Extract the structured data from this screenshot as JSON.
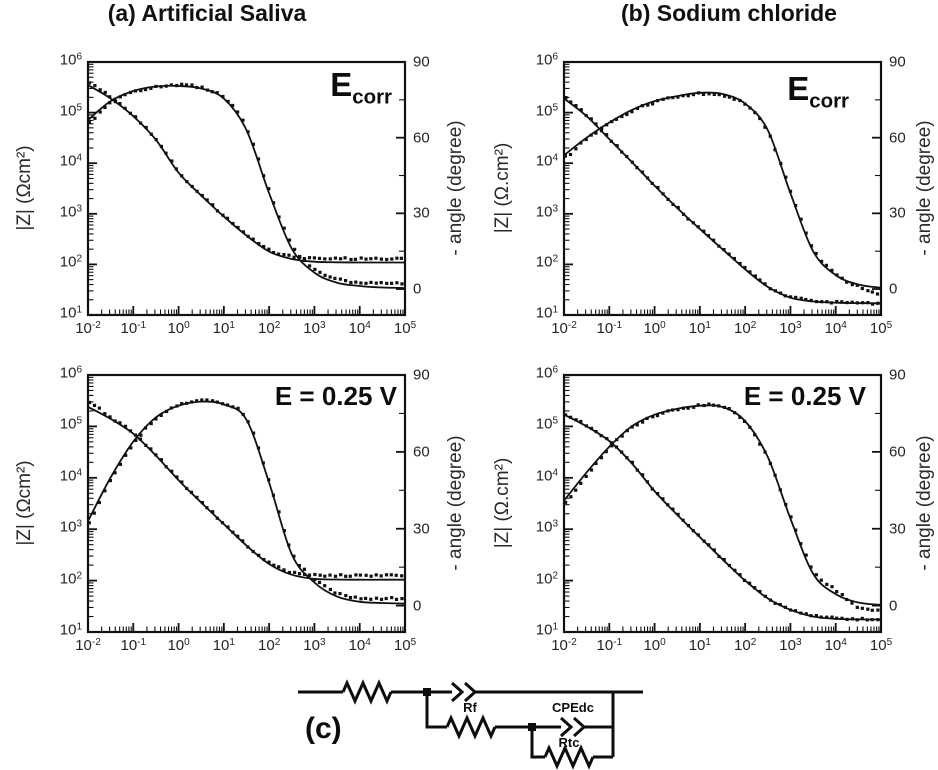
{
  "circuit": {
    "panel_label": "(c)",
    "rf": "Rf",
    "cpedc": "CPEdc",
    "rtc": "Rtc"
  },
  "chart_data": [
    {
      "panel": "a",
      "title": "(a) Artificial Saliva",
      "condition_label": {
        "main": "E",
        "sub": "corr"
      },
      "type": "line",
      "x": {
        "scale": "log",
        "range_log10": [
          -2,
          5
        ],
        "ticks": [
          "10^-2",
          "10^-1",
          "10^0",
          "10^1",
          "10^2",
          "10^3",
          "10^4",
          "10^5"
        ]
      },
      "y_left": {
        "label": "|Z| (Ωcm²)",
        "scale": "log",
        "range_log10": [
          1,
          6
        ],
        "ticks": [
          "10^6",
          "10^5",
          "10^4",
          "10^3",
          "10^2",
          "10^1"
        ]
      },
      "y_right": {
        "label": "- angle (degree)",
        "scale": "linear",
        "range": [
          -10.3,
          90
        ],
        "ticks": [
          "90",
          "60",
          "30",
          "0"
        ],
        "tick_values": [
          90,
          60,
          30,
          0
        ]
      },
      "x_log10": [
        -2,
        -1.5,
        -1,
        -0.5,
        0,
        0.5,
        1,
        1.5,
        2,
        2.5,
        3,
        3.5,
        4,
        4.5,
        5
      ],
      "series": [
        {
          "name": "impedance-fit",
          "axis": "left",
          "style": "line",
          "values": [
            350000,
            190000,
            85000,
            29000,
            6500,
            2300,
            880,
            370,
            180,
            128,
            113,
            110,
            109,
            109,
            109
          ]
        },
        {
          "name": "impedance-exp",
          "axis": "left",
          "style": "dots",
          "values": [
            380000,
            200000,
            88000,
            30000,
            6800,
            2400,
            920,
            390,
            195,
            142,
            130,
            129,
            130,
            130,
            132
          ]
        },
        {
          "name": "phase-fit",
          "axis": "right",
          "style": "line",
          "values": [
            67,
            74.5,
            78.5,
            80.3,
            80.5,
            79.5,
            75.5,
            63,
            38,
            16,
            6.5,
            2.5,
            1.2,
            0.6,
            0.4
          ]
        },
        {
          "name": "phase-exp",
          "axis": "right",
          "style": "dots",
          "values": [
            66,
            74,
            78,
            80,
            80.8,
            79.8,
            76,
            64,
            39,
            17.5,
            8,
            4,
            2.6,
            2.3,
            2.3
          ]
        }
      ]
    },
    {
      "panel": "b",
      "title": "(b) Sodium chloride",
      "condition_label": {
        "main": "E",
        "sub": "corr"
      },
      "type": "line",
      "x": {
        "scale": "log",
        "range_log10": [
          -2,
          5
        ],
        "ticks": [
          "10^-2",
          "10^-1",
          "10^0",
          "10^1",
          "10^2",
          "10^3",
          "10^4",
          "10^5"
        ]
      },
      "y_left": {
        "label": "|Z| (Ω.cm²)",
        "scale": "log",
        "range_log10": [
          1,
          6
        ],
        "ticks": [
          "10^6",
          "10^5",
          "10^4",
          "10^3",
          "10^2",
          "10^1"
        ]
      },
      "y_right": {
        "label": "- angle (degree)",
        "scale": "linear",
        "range": [
          -10.3,
          90
        ],
        "ticks": [
          "90",
          "60",
          "30",
          "0"
        ],
        "tick_values": [
          90,
          60,
          30,
          0
        ]
      },
      "x_log10": [
        -2,
        -1.5,
        -1,
        -0.5,
        0,
        0.5,
        1,
        1.5,
        2,
        2.5,
        3,
        3.5,
        4,
        4.5,
        5
      ],
      "series": [
        {
          "name": "impedance-fit",
          "axis": "left",
          "style": "line",
          "values": [
            190000,
            85000,
            30000,
            10500,
            3600,
            1300,
            500,
            200,
            80,
            36,
            22,
            18.5,
            17.5,
            17.2,
            17
          ]
        },
        {
          "name": "impedance-exp",
          "axis": "left",
          "style": "dots",
          "values": [
            200000,
            87000,
            31000,
            10700,
            3700,
            1330,
            510,
            205,
            82,
            37,
            23,
            19,
            18,
            17.5,
            17
          ]
        },
        {
          "name": "phase-fit",
          "axis": "right",
          "style": "line",
          "values": [
            53,
            60,
            66,
            71,
            74.5,
            76.5,
            77.8,
            77.3,
            73.5,
            63,
            38,
            15,
            5.5,
            1.8,
            0.5
          ]
        },
        {
          "name": "phase-exp",
          "axis": "right",
          "style": "dots",
          "values": [
            52,
            59.5,
            65.5,
            70.5,
            74,
            76.2,
            77.5,
            77,
            73,
            62.5,
            39,
            16,
            6,
            1,
            -2
          ]
        }
      ]
    },
    {
      "panel": "c",
      "title": "",
      "condition_label": {
        "main": "E = 0.25 V",
        "sub": ""
      },
      "type": "line",
      "x": {
        "scale": "log",
        "range_log10": [
          -2,
          5
        ],
        "ticks": [
          "10^-2",
          "10^-1",
          "10^0",
          "10^1",
          "10^2",
          "10^3",
          "10^4",
          "10^5"
        ]
      },
      "y_left": {
        "label": "|Z| (Ωcm²)",
        "scale": "log",
        "range_log10": [
          1,
          6
        ],
        "ticks": [
          "10^6",
          "10^5",
          "10^4",
          "10^3",
          "10^2",
          "10^1"
        ]
      },
      "y_right": {
        "label": "- angle (degree)",
        "scale": "linear",
        "range": [
          -10.3,
          90
        ],
        "ticks": [
          "90",
          "60",
          "30",
          "0"
        ],
        "tick_values": [
          90,
          60,
          30,
          0
        ]
      },
      "x_log10": [
        -2,
        -1.5,
        -1,
        -0.5,
        0,
        0.5,
        1,
        1.5,
        2,
        2.5,
        3,
        3.5,
        4,
        4.5,
        5
      ],
      "series": [
        {
          "name": "impedance-fit",
          "axis": "left",
          "style": "line",
          "values": [
            240000,
            140000,
            72000,
            27000,
            9000,
            3300,
            1250,
            480,
            210,
            130,
            108,
            105,
            104,
            104,
            104
          ]
        },
        {
          "name": "impedance-exp",
          "axis": "left",
          "style": "dots",
          "values": [
            300000,
            150000,
            74000,
            28000,
            9300,
            3400,
            1300,
            500,
            225,
            145,
            127,
            126,
            126,
            127,
            128
          ]
        },
        {
          "name": "phase-fit",
          "axis": "right",
          "style": "line",
          "values": [
            33,
            50,
            64,
            73.5,
            78,
            79.6,
            78.5,
            72.5,
            48,
            20,
            9,
            3.5,
            1.5,
            1,
            0.8
          ]
        },
        {
          "name": "phase-exp",
          "axis": "right",
          "style": "dots",
          "values": [
            32,
            49,
            63,
            73,
            78,
            80,
            79,
            73,
            49,
            21,
            10.5,
            5,
            3,
            2.8,
            2.8
          ]
        }
      ]
    },
    {
      "panel": "d",
      "title": "",
      "condition_label": {
        "main": "E = 0.25 V",
        "sub": ""
      },
      "type": "line",
      "x": {
        "scale": "log",
        "range_log10": [
          -2,
          5
        ],
        "ticks": [
          "10^-2",
          "10^-1",
          "10^0",
          "10^1",
          "10^2",
          "10^3",
          "10^4",
          "10^5"
        ]
      },
      "y_left": {
        "label": "|Z| (Ω.cm²)",
        "scale": "log",
        "range_log10": [
          1,
          6
        ],
        "ticks": [
          "10^6",
          "10^5",
          "10^4",
          "10^3",
          "10^2",
          "10^1"
        ]
      },
      "y_right": {
        "label": "- angle (degree)",
        "scale": "linear",
        "range": [
          -10.3,
          90
        ],
        "ticks": [
          "90",
          "60",
          "30",
          "0"
        ],
        "tick_values": [
          90,
          60,
          30,
          0
        ]
      },
      "x_log10": [
        -2,
        -1.5,
        -1,
        -0.5,
        0,
        0.5,
        1,
        1.5,
        2,
        2.5,
        3,
        3.5,
        4,
        4.5,
        5
      ],
      "series": [
        {
          "name": "impedance-fit",
          "axis": "left",
          "style": "line",
          "values": [
            170000,
            100000,
            52000,
            19000,
            5500,
            1900,
            700,
            260,
            100,
            45,
            27,
            20,
            18,
            17.6,
            17.5
          ]
        },
        {
          "name": "impedance-exp",
          "axis": "left",
          "style": "dots",
          "values": [
            175000,
            102000,
            53000,
            19500,
            5600,
            1950,
            720,
            265,
            103,
            46,
            28,
            21,
            18.5,
            18,
            17
          ]
        },
        {
          "name": "phase-fit",
          "axis": "right",
          "style": "line",
          "values": [
            41,
            52,
            62,
            70,
            74.5,
            76.8,
            78,
            77.5,
            72,
            58,
            34,
            12.5,
            4.5,
            1.2,
            0.3
          ]
        },
        {
          "name": "phase-exp",
          "axis": "right",
          "style": "dots",
          "values": [
            40,
            51,
            61.5,
            69.5,
            74,
            76.5,
            78,
            77.8,
            71.5,
            57.5,
            35,
            14,
            6,
            -0.5,
            -2
          ]
        }
      ]
    }
  ],
  "colors": {
    "ink": "#111111",
    "tick_text": "#252525"
  }
}
